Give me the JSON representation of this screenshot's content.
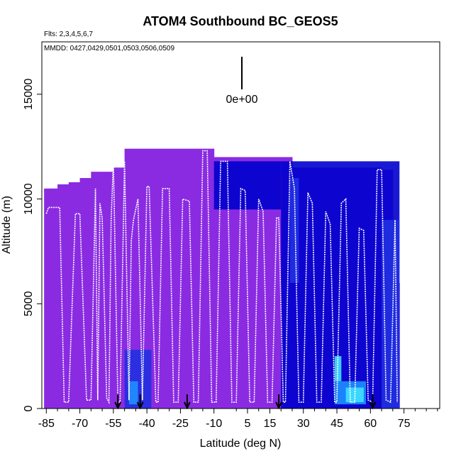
{
  "chart_data": {
    "type": "heatmap",
    "title": "ATOM4 Southbound BC_GEOS5",
    "flights_label": "Flts: 2,3,4,5,6,7",
    "dates_label": "MMDD: 0427,0429,0501,0503,0506,0509",
    "xlabel": "Latitude (deg N)",
    "ylabel": "Altitude (m)",
    "xlim": [
      -87,
      91
    ],
    "ylim": [
      0,
      17500
    ],
    "x_ticks": [
      -85,
      -70,
      -55,
      -40,
      -25,
      -10,
      5,
      15,
      30,
      45,
      60,
      75
    ],
    "x_minor_ticks": [
      -80,
      -75,
      -65,
      -60,
      -50,
      -45,
      -35,
      -30,
      -20,
      -15,
      0,
      10,
      20,
      25,
      35,
      40,
      50,
      55,
      65,
      70,
      80,
      85,
      90
    ],
    "y_ticks": [
      0,
      5000,
      10000,
      15000
    ],
    "scale_label": "0e+00",
    "colors": {
      "background_purple": "#8a2be2",
      "deep_blue": "#0000cd",
      "mid_blue": "#2030e0",
      "light_blue": "#1e90ff",
      "cyan": "#40e0ff",
      "flight_track": "#ffffff",
      "marker": "#000000"
    },
    "model_envelope": [
      {
        "lat0": -86,
        "lat1": -80,
        "top": 10500
      },
      {
        "lat0": -80,
        "lat1": -75,
        "top": 10700
      },
      {
        "lat0": -75,
        "lat1": -70,
        "top": 10800
      },
      {
        "lat0": -70,
        "lat1": -65,
        "top": 11000
      },
      {
        "lat0": -65,
        "lat1": -55,
        "top": 11300
      },
      {
        "lat0": -55,
        "lat1": -50,
        "top": 11500
      },
      {
        "lat0": -50,
        "lat1": -45,
        "top": 12400
      },
      {
        "lat0": -45,
        "lat1": -10,
        "top": 12400
      },
      {
        "lat0": -10,
        "lat1": 20,
        "top": 12000
      },
      {
        "lat0": 20,
        "lat1": 25,
        "top": 12000
      },
      {
        "lat0": 25,
        "lat1": 65,
        "top": 11500
      },
      {
        "lat0": 65,
        "lat1": 70,
        "top": 11400
      },
      {
        "lat0": 70,
        "lat1": 73,
        "top": 6000
      }
    ],
    "blue_regions": [
      {
        "lat0": -10,
        "lat1": 20,
        "alt0": 9500,
        "alt1": 11800,
        "color": "deep_blue"
      },
      {
        "lat0": 20,
        "lat1": 73,
        "alt0": 0,
        "alt1": 11800,
        "color": "deep_blue"
      },
      {
        "lat0": 24,
        "lat1": 28,
        "alt0": 6000,
        "alt1": 11000,
        "color": "mid_blue"
      },
      {
        "lat0": 65,
        "lat1": 73,
        "alt0": 0,
        "alt1": 9000,
        "color": "mid_blue"
      },
      {
        "lat0": -50,
        "lat1": -38,
        "alt0": 0,
        "alt1": 2800,
        "color": "mid_blue"
      },
      {
        "lat0": -48,
        "lat1": -44,
        "alt0": 200,
        "alt1": 1300,
        "color": "light_blue"
      },
      {
        "lat0": 44,
        "lat1": 58,
        "alt0": 200,
        "alt1": 1300,
        "color": "light_blue"
      },
      {
        "lat0": 44,
        "lat1": 47,
        "alt0": 1300,
        "alt1": 2500,
        "color": "cyan"
      },
      {
        "lat0": 49,
        "lat1": 57,
        "alt0": 300,
        "alt1": 1000,
        "color": "cyan"
      }
    ],
    "flight_track": [
      [
        -85,
        9300
      ],
      [
        -84,
        9600
      ],
      [
        -79,
        9600
      ],
      [
        -77,
        300
      ],
      [
        -75,
        300
      ],
      [
        -72,
        9300
      ],
      [
        -70,
        9300
      ],
      [
        -67,
        400
      ],
      [
        -65,
        400
      ],
      [
        -63,
        10500
      ],
      [
        -62,
        400
      ],
      [
        -61,
        9800
      ],
      [
        -60,
        9100
      ],
      [
        -58,
        500
      ],
      [
        -57,
        300
      ],
      [
        -56,
        9000
      ],
      [
        -55,
        11800
      ],
      [
        -53,
        300
      ],
      [
        -52,
        300
      ],
      [
        -50,
        11800
      ],
      [
        -48,
        400
      ],
      [
        -47,
        8000
      ],
      [
        -46,
        9000
      ],
      [
        -44,
        10000
      ],
      [
        -42,
        400
      ],
      [
        -40,
        10600
      ],
      [
        -39,
        10600
      ],
      [
        -36,
        300
      ],
      [
        -35,
        300
      ],
      [
        -33,
        10500
      ],
      [
        -30,
        10500
      ],
      [
        -28,
        300
      ],
      [
        -26,
        300
      ],
      [
        -24,
        10000
      ],
      [
        -21,
        9900
      ],
      [
        -19,
        300
      ],
      [
        -17,
        300
      ],
      [
        -15,
        12300
      ],
      [
        -13,
        12300
      ],
      [
        -11,
        300
      ],
      [
        -9,
        300
      ],
      [
        -7,
        11800
      ],
      [
        -4,
        11800
      ],
      [
        -2,
        300
      ],
      [
        0,
        300
      ],
      [
        2,
        10500
      ],
      [
        4,
        10400
      ],
      [
        6,
        300
      ],
      [
        8,
        300
      ],
      [
        10,
        10000
      ],
      [
        12,
        9400
      ],
      [
        14,
        300
      ],
      [
        16,
        300
      ],
      [
        18,
        9100
      ],
      [
        19,
        9100
      ],
      [
        21,
        300
      ],
      [
        22,
        300
      ],
      [
        24,
        11800
      ],
      [
        26,
        10500
      ],
      [
        28,
        300
      ],
      [
        30,
        300
      ],
      [
        32,
        10300
      ],
      [
        34,
        9800
      ],
      [
        36,
        300
      ],
      [
        38,
        300
      ],
      [
        40,
        9400
      ],
      [
        42,
        8800
      ],
      [
        44,
        300
      ],
      [
        45,
        300
      ],
      [
        47,
        9800
      ],
      [
        49,
        10000
      ],
      [
        51,
        300
      ],
      [
        53,
        300
      ],
      [
        55,
        8600
      ],
      [
        57,
        8500
      ],
      [
        59,
        400
      ],
      [
        61,
        300
      ],
      [
        63,
        11400
      ],
      [
        65,
        11400
      ],
      [
        67,
        400
      ],
      [
        69,
        300
      ],
      [
        71,
        9000
      ],
      [
        72,
        300
      ]
    ],
    "markers_lat": [
      -53,
      -43,
      -22,
      19,
      61
    ]
  }
}
